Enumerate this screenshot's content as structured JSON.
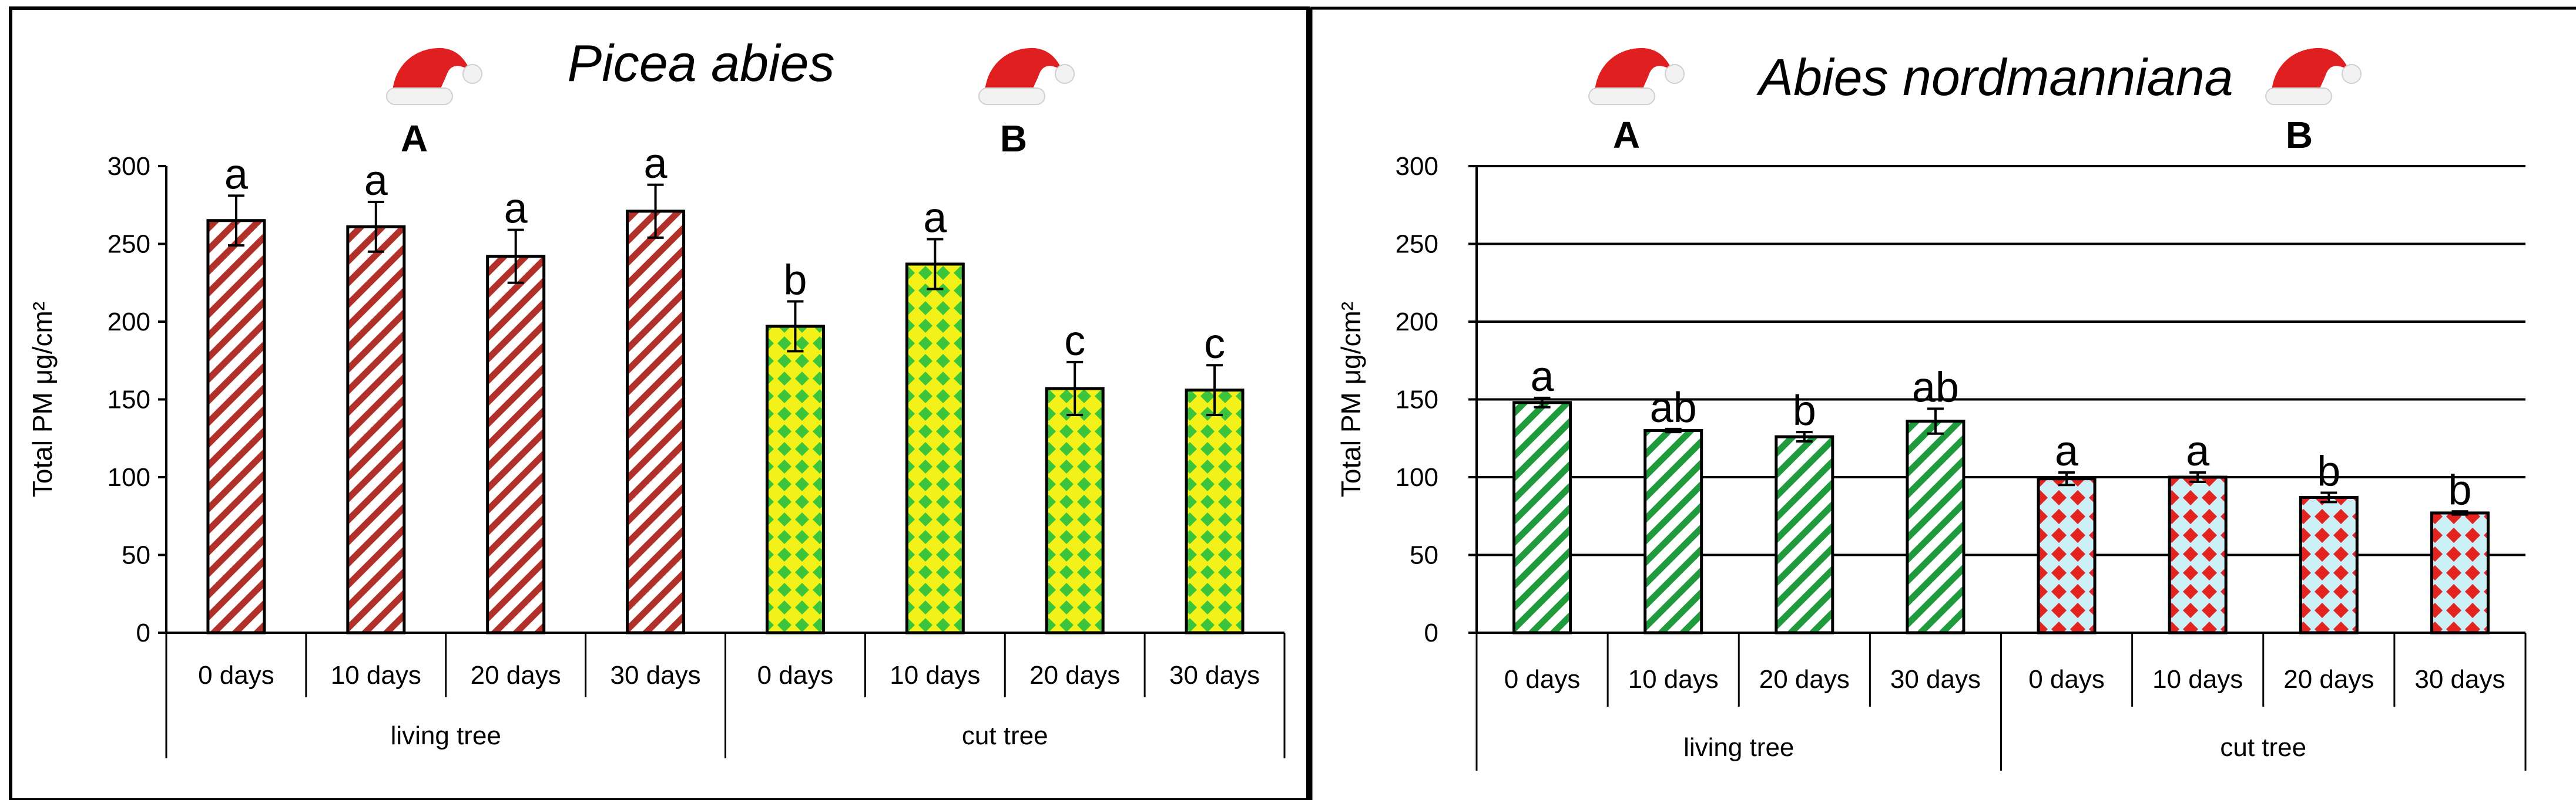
{
  "chart_data": [
    {
      "type": "bar",
      "title": "Picea abies",
      "ylabel": "Total PM μg/cm²",
      "ylim": [
        0,
        300
      ],
      "yticks": [
        0,
        50,
        100,
        150,
        200,
        250,
        300
      ],
      "grid": false,
      "groups": [
        {
          "label": "living tree",
          "letter": "A",
          "pattern": "red-diagonal"
        },
        {
          "label": "cut tree",
          "letter": "B",
          "pattern": "yellow-green-diamond"
        }
      ],
      "categories": [
        "0 days",
        "10 days",
        "20 days",
        "30 days",
        "0 days",
        "10 days",
        "20 days",
        "30 days"
      ],
      "values": [
        265,
        261,
        242,
        271,
        197,
        237,
        157,
        156
      ],
      "errors": [
        16,
        16,
        17,
        17,
        16,
        16,
        17,
        16
      ],
      "sig_letters": [
        "a",
        "a",
        "a",
        "a",
        "b",
        "a",
        "c",
        "c"
      ],
      "decoration": "santa-hat"
    },
    {
      "type": "bar",
      "title": "Abies nordmanniana",
      "ylabel": "Total PM μg/cm²",
      "ylim": [
        0,
        300
      ],
      "yticks": [
        0,
        50,
        100,
        150,
        200,
        250,
        300
      ],
      "grid": true,
      "groups": [
        {
          "label": "living tree",
          "letter": "A",
          "pattern": "green-diagonal"
        },
        {
          "label": "cut tree",
          "letter": "B",
          "pattern": "red-cyan-diamond"
        }
      ],
      "categories": [
        "0 days",
        "10 days",
        "20 days",
        "30 days",
        "0 days",
        "10 days",
        "20 days",
        "30 days"
      ],
      "values": [
        148,
        130,
        126,
        136,
        99,
        100,
        87,
        77
      ],
      "errors": [
        3,
        1,
        3,
        8,
        4,
        3,
        3,
        1
      ],
      "sig_letters": [
        "a",
        "ab",
        "b",
        "ab",
        "a",
        "a",
        "b",
        "b"
      ],
      "decoration": "santa-hat"
    }
  ]
}
